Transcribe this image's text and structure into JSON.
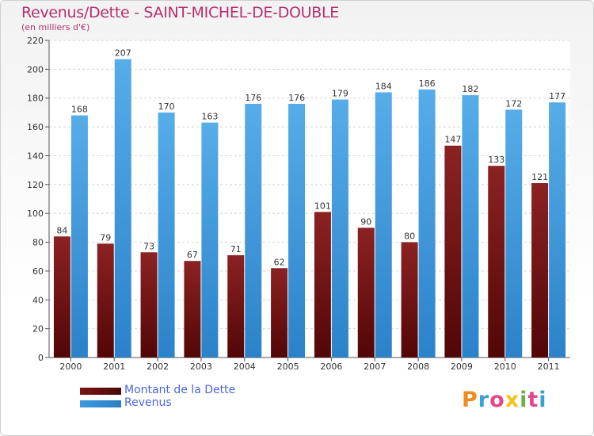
{
  "title": "Revenus/Dette - SAINT-MICHEL-DE-DOUBLE",
  "subtitle": "(en milliers d'€)",
  "brand": {
    "text": "Proxiti",
    "letter_colors": [
      "#f08a1c",
      "#3aa0d8",
      "#e04a8a",
      "#f5c21b",
      "#6ab04c",
      "#e04a8a",
      "#3aa0d8"
    ]
  },
  "colors": {
    "dette": "#7a1616",
    "revenus": "#3d9ae0"
  },
  "chart_data": {
    "type": "bar",
    "categories": [
      "2000",
      "2001",
      "2002",
      "2003",
      "2004",
      "2005",
      "2006",
      "2007",
      "2008",
      "2009",
      "2010",
      "2011"
    ],
    "series": [
      {
        "name": "Montant de la Dette",
        "values": [
          84,
          79,
          73,
          67,
          71,
          62,
          101,
          90,
          80,
          147,
          133,
          121
        ]
      },
      {
        "name": "Revenus",
        "values": [
          168,
          207,
          170,
          163,
          176,
          176,
          179,
          184,
          186,
          182,
          172,
          177
        ]
      }
    ],
    "yticks": [
      "0",
      "20",
      "40",
      "60",
      "80",
      "100",
      "120",
      "140",
      "160",
      "180",
      "200",
      "220"
    ],
    "ylim": [
      0,
      220
    ],
    "grid": true,
    "legend_position": "bottom-left"
  }
}
